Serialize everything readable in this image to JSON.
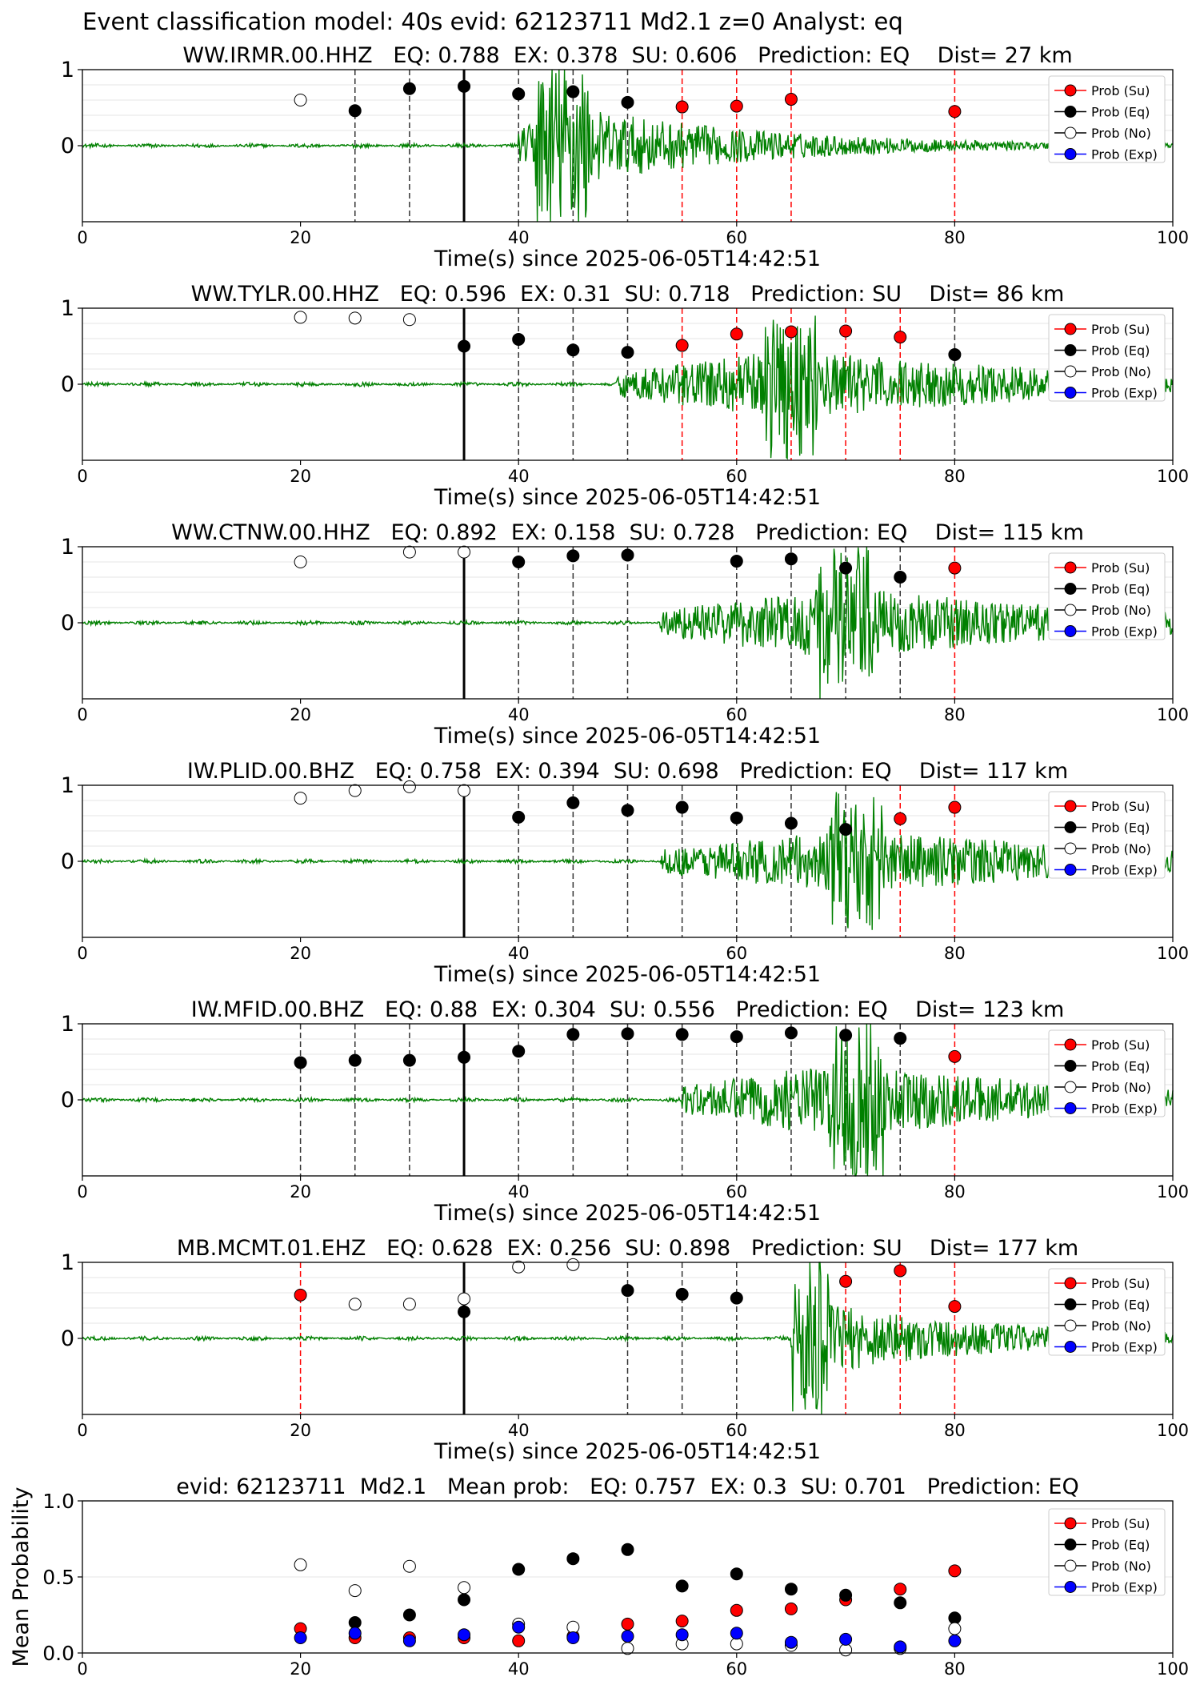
{
  "suptitle": "Event classification model: 40s evid: 62123711 Md2.1 z=0 Analyst: eq",
  "xlabel": "Time(s) since 2025-06-05T14:42:51",
  "legend": [
    "Prob (Su)",
    "Prob (Eq)",
    "Prob (No)",
    "Prob (Exp)"
  ],
  "colors": {
    "su": "#ff0000",
    "eq": "#000000",
    "no": "#ffffff",
    "exp": "#0000ff",
    "waveform": "#008000",
    "origin_line": "#000000"
  },
  "chart_data": [
    {
      "type": "scatter",
      "title": "WW.IRMR.00.HHZ   EQ: 0.788  EX: 0.378  SU: 0.606   Prediction: EQ    Dist= 27 km",
      "xlim": [
        0,
        100
      ],
      "ylim": [
        -1,
        1
      ],
      "xticks": [
        0,
        20,
        40,
        60,
        80,
        100
      ],
      "yticks": [
        0,
        1
      ],
      "origin_time": 35,
      "waveform": {
        "start": 40,
        "amplitude": 1.0,
        "decay": 18,
        "peak_time": 44
      },
      "series": [
        {
          "name": "Prob (Su)",
          "x": [
            55,
            60,
            65,
            80
          ],
          "y": [
            0.51,
            0.52,
            0.61,
            0.45
          ]
        },
        {
          "name": "Prob (Eq)",
          "x": [
            25,
            30,
            35,
            40,
            45,
            50
          ],
          "y": [
            0.46,
            0.75,
            0.78,
            0.68,
            0.71,
            0.57
          ]
        },
        {
          "name": "Prob (No)",
          "x": [
            20
          ],
          "y": [
            0.6
          ]
        },
        {
          "name": "Prob (Exp)",
          "x": [],
          "y": []
        }
      ],
      "vlines": [
        {
          "x": 25,
          "color": "eq"
        },
        {
          "x": 30,
          "color": "eq"
        },
        {
          "x": 40,
          "color": "eq"
        },
        {
          "x": 45,
          "color": "eq"
        },
        {
          "x": 50,
          "color": "eq"
        },
        {
          "x": 55,
          "color": "su"
        },
        {
          "x": 60,
          "color": "su"
        },
        {
          "x": 65,
          "color": "su"
        },
        {
          "x": 80,
          "color": "su"
        }
      ]
    },
    {
      "type": "scatter",
      "title": "WW.TYLR.00.HHZ   EQ: 0.596  EX: 0.31  SU: 0.718   Prediction: SU    Dist= 86 km",
      "xlim": [
        0,
        100
      ],
      "ylim": [
        -1,
        1
      ],
      "xticks": [
        0,
        20,
        40,
        60,
        80,
        100
      ],
      "yticks": [
        0,
        1
      ],
      "origin_time": 35,
      "waveform": {
        "start": 49,
        "amplitude": 0.85,
        "decay": 30,
        "peak_time": 65
      },
      "series": [
        {
          "name": "Prob (Su)",
          "x": [
            55,
            60,
            65,
            70,
            75
          ],
          "y": [
            0.51,
            0.66,
            0.69,
            0.7,
            0.62
          ]
        },
        {
          "name": "Prob (Eq)",
          "x": [
            35,
            40,
            45,
            50,
            80
          ],
          "y": [
            0.5,
            0.59,
            0.45,
            0.42,
            0.39
          ]
        },
        {
          "name": "Prob (No)",
          "x": [
            20,
            25,
            30
          ],
          "y": [
            0.88,
            0.87,
            0.85
          ]
        },
        {
          "name": "Prob (Exp)",
          "x": [],
          "y": []
        }
      ],
      "vlines": [
        {
          "x": 40,
          "color": "eq"
        },
        {
          "x": 45,
          "color": "eq"
        },
        {
          "x": 50,
          "color": "eq"
        },
        {
          "x": 80,
          "color": "eq"
        },
        {
          "x": 55,
          "color": "su"
        },
        {
          "x": 60,
          "color": "su"
        },
        {
          "x": 65,
          "color": "su"
        },
        {
          "x": 70,
          "color": "su"
        },
        {
          "x": 75,
          "color": "su"
        }
      ]
    },
    {
      "type": "scatter",
      "title": "WW.CTNW.00.HHZ   EQ: 0.892  EX: 0.158  SU: 0.728   Prediction: EQ    Dist= 115 km",
      "xlim": [
        0,
        100
      ],
      "ylim": [
        -1,
        1
      ],
      "xticks": [
        0,
        20,
        40,
        60,
        80,
        100
      ],
      "yticks": [
        0,
        1
      ],
      "origin_time": 35,
      "waveform": {
        "start": 53,
        "amplitude": 0.9,
        "decay": 25,
        "peak_time": 70
      },
      "series": [
        {
          "name": "Prob (Su)",
          "x": [
            80
          ],
          "y": [
            0.72
          ]
        },
        {
          "name": "Prob (Eq)",
          "x": [
            40,
            45,
            50,
            60,
            65,
            70,
            75
          ],
          "y": [
            0.8,
            0.88,
            0.89,
            0.81,
            0.84,
            0.72,
            0.6
          ]
        },
        {
          "name": "Prob (No)",
          "x": [
            20,
            30,
            35
          ],
          "y": [
            0.8,
            0.93,
            0.93
          ]
        },
        {
          "name": "Prob (Exp)",
          "x": [],
          "y": []
        }
      ],
      "vlines": [
        {
          "x": 40,
          "color": "eq"
        },
        {
          "x": 45,
          "color": "eq"
        },
        {
          "x": 50,
          "color": "eq"
        },
        {
          "x": 60,
          "color": "eq"
        },
        {
          "x": 65,
          "color": "eq"
        },
        {
          "x": 70,
          "color": "eq"
        },
        {
          "x": 75,
          "color": "eq"
        },
        {
          "x": 80,
          "color": "su"
        }
      ]
    },
    {
      "type": "scatter",
      "title": "IW.PLID.00.BHZ   EQ: 0.758  EX: 0.394  SU: 0.698   Prediction: EQ    Dist= 117 km",
      "xlim": [
        0,
        100
      ],
      "ylim": [
        -1,
        1
      ],
      "xticks": [
        0,
        20,
        40,
        60,
        80,
        100
      ],
      "yticks": [
        0,
        1
      ],
      "origin_time": 35,
      "waveform": {
        "start": 53,
        "amplitude": 0.8,
        "decay": 28,
        "peak_time": 71
      },
      "series": [
        {
          "name": "Prob (Su)",
          "x": [
            75,
            80
          ],
          "y": [
            0.56,
            0.71
          ]
        },
        {
          "name": "Prob (Eq)",
          "x": [
            40,
            45,
            50,
            55,
            60,
            65,
            70
          ],
          "y": [
            0.58,
            0.77,
            0.67,
            0.71,
            0.57,
            0.5,
            0.42
          ]
        },
        {
          "name": "Prob (No)",
          "x": [
            20,
            25,
            30,
            35
          ],
          "y": [
            0.83,
            0.93,
            0.98,
            0.93
          ]
        },
        {
          "name": "Prob (Exp)",
          "x": [],
          "y": []
        }
      ],
      "vlines": [
        {
          "x": 40,
          "color": "eq"
        },
        {
          "x": 45,
          "color": "eq"
        },
        {
          "x": 50,
          "color": "eq"
        },
        {
          "x": 55,
          "color": "eq"
        },
        {
          "x": 60,
          "color": "eq"
        },
        {
          "x": 65,
          "color": "eq"
        },
        {
          "x": 70,
          "color": "eq"
        },
        {
          "x": 75,
          "color": "su"
        },
        {
          "x": 80,
          "color": "su"
        }
      ]
    },
    {
      "type": "scatter",
      "title": "IW.MFID.00.BHZ   EQ: 0.88  EX: 0.304  SU: 0.556   Prediction: EQ    Dist= 123 km",
      "xlim": [
        0,
        100
      ],
      "ylim": [
        -1,
        1
      ],
      "xticks": [
        0,
        20,
        40,
        60,
        80,
        100
      ],
      "yticks": [
        0,
        1
      ],
      "origin_time": 35,
      "waveform": {
        "start": 55,
        "amplitude": 0.95,
        "decay": 22,
        "peak_time": 71
      },
      "series": [
        {
          "name": "Prob (Su)",
          "x": [
            80
          ],
          "y": [
            0.57
          ]
        },
        {
          "name": "Prob (Eq)",
          "x": [
            20,
            25,
            30,
            35,
            40,
            45,
            50,
            55,
            60,
            65,
            70,
            75
          ],
          "y": [
            0.49,
            0.52,
            0.52,
            0.56,
            0.64,
            0.86,
            0.87,
            0.86,
            0.83,
            0.88,
            0.85,
            0.81
          ]
        },
        {
          "name": "Prob (No)",
          "x": [],
          "y": []
        },
        {
          "name": "Prob (Exp)",
          "x": [],
          "y": []
        }
      ],
      "vlines": [
        {
          "x": 20,
          "color": "eq"
        },
        {
          "x": 25,
          "color": "eq"
        },
        {
          "x": 30,
          "color": "eq"
        },
        {
          "x": 40,
          "color": "eq"
        },
        {
          "x": 45,
          "color": "eq"
        },
        {
          "x": 50,
          "color": "eq"
        },
        {
          "x": 55,
          "color": "eq"
        },
        {
          "x": 60,
          "color": "eq"
        },
        {
          "x": 65,
          "color": "eq"
        },
        {
          "x": 70,
          "color": "eq"
        },
        {
          "x": 75,
          "color": "eq"
        },
        {
          "x": 80,
          "color": "su"
        }
      ]
    },
    {
      "type": "scatter",
      "title": "MB.MCMT.01.EHZ   EQ: 0.628  EX: 0.256  SU: 0.898   Prediction: SU    Dist= 177 km",
      "xlim": [
        0,
        100
      ],
      "ylim": [
        -1,
        1
      ],
      "xticks": [
        0,
        20,
        40,
        60,
        80,
        100
      ],
      "yticks": [
        0,
        1
      ],
      "origin_time": 35,
      "waveform": {
        "start": 65,
        "amplitude": 0.95,
        "decay": 18,
        "peak_time": 66
      },
      "series": [
        {
          "name": "Prob (Su)",
          "x": [
            20,
            70,
            75,
            80
          ],
          "y": [
            0.57,
            0.75,
            0.89,
            0.42
          ]
        },
        {
          "name": "Prob (Eq)",
          "x": [
            35,
            50,
            55,
            60
          ],
          "y": [
            0.35,
            0.63,
            0.58,
            0.53
          ]
        },
        {
          "name": "Prob (No)",
          "x": [
            25,
            30,
            35,
            40,
            45
          ],
          "y": [
            0.45,
            0.45,
            0.52,
            0.94,
            0.97
          ]
        },
        {
          "name": "Prob (Exp)",
          "x": [],
          "y": []
        }
      ],
      "vlines": [
        {
          "x": 50,
          "color": "eq"
        },
        {
          "x": 55,
          "color": "eq"
        },
        {
          "x": 60,
          "color": "eq"
        },
        {
          "x": 20,
          "color": "su"
        },
        {
          "x": 70,
          "color": "su"
        },
        {
          "x": 75,
          "color": "su"
        },
        {
          "x": 80,
          "color": "su"
        }
      ]
    },
    {
      "type": "scatter",
      "title": "evid: 62123711  Md2.1   Mean prob:   EQ: 0.757  EX: 0.3  SU: 0.701   Prediction: EQ",
      "ylabel": "Mean Probability",
      "xlim": [
        0,
        100
      ],
      "ylim": [
        0,
        1
      ],
      "xticks": [
        0,
        20,
        40,
        60,
        80,
        100
      ],
      "yticks": [
        0.0,
        0.5,
        1.0
      ],
      "series": [
        {
          "name": "Prob (Su)",
          "x": [
            20,
            25,
            30,
            35,
            40,
            45,
            50,
            55,
            60,
            65,
            70,
            75,
            80
          ],
          "y": [
            0.16,
            0.1,
            0.1,
            0.1,
            0.08,
            0.11,
            0.19,
            0.21,
            0.28,
            0.29,
            0.35,
            0.42,
            0.54
          ]
        },
        {
          "name": "Prob (Eq)",
          "x": [
            25,
            30,
            35,
            40,
            45,
            50,
            55,
            60,
            65,
            70,
            75,
            80
          ],
          "y": [
            0.2,
            0.25,
            0.35,
            0.55,
            0.62,
            0.68,
            0.44,
            0.52,
            0.42,
            0.38,
            0.33,
            0.23
          ]
        },
        {
          "name": "Prob (No)",
          "x": [
            20,
            25,
            30,
            35,
            40,
            45,
            50,
            55,
            60,
            65,
            70,
            75,
            80
          ],
          "y": [
            0.58,
            0.41,
            0.57,
            0.43,
            0.19,
            0.17,
            0.03,
            0.06,
            0.06,
            0.05,
            0.02,
            0.03,
            0.16
          ]
        },
        {
          "name": "Prob (Exp)",
          "x": [
            20,
            25,
            30,
            35,
            40,
            45,
            50,
            55,
            60,
            65,
            70,
            75,
            80
          ],
          "y": [
            0.1,
            0.13,
            0.08,
            0.12,
            0.17,
            0.1,
            0.11,
            0.12,
            0.13,
            0.07,
            0.09,
            0.04,
            0.08
          ]
        }
      ]
    }
  ]
}
